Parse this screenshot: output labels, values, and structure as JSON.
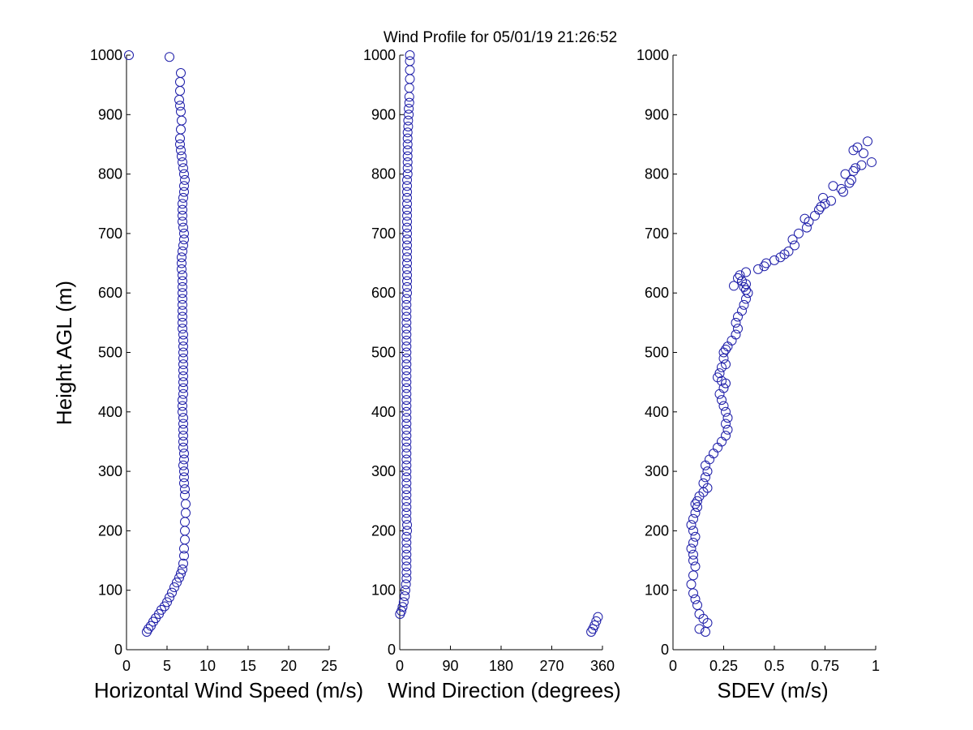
{
  "figure": {
    "title": "Wind Profile for  05/01/19 21:26:52",
    "marker_color": "#1c1ca8",
    "background_color": "#ffffff"
  },
  "chart_data": [
    {
      "type": "scatter",
      "id": "speed",
      "title": "",
      "xlabel": "Horizontal Wind Speed (m/s)",
      "ylabel": "Height AGL (m)",
      "xlim": [
        0,
        25
      ],
      "ylim": [
        0,
        1000
      ],
      "xticks": [
        0,
        5,
        10,
        15,
        20,
        25
      ],
      "xtick_labels": [
        "0",
        "5",
        "10",
        "15",
        "20",
        "25"
      ],
      "yticks": [
        0,
        100,
        200,
        300,
        400,
        500,
        600,
        700,
        800,
        900,
        1000
      ],
      "ytick_labels": [
        "0",
        "100",
        "200",
        "300",
        "400",
        "500",
        "600",
        "700",
        "800",
        "900",
        "1000"
      ],
      "series": [
        {
          "name": "Horizontal Wind Speed",
          "x": [
            2.5,
            2.7,
            3.0,
            3.3,
            3.6,
            4.0,
            4.3,
            4.7,
            5.0,
            5.3,
            5.6,
            5.9,
            6.2,
            6.5,
            6.7,
            6.9,
            7.0,
            7.1,
            7.1,
            7.2,
            7.2,
            7.2,
            7.3,
            7.3,
            7.2,
            7.2,
            7.1,
            7.1,
            7.1,
            7.0,
            7.1,
            7.1,
            7.0,
            7.0,
            7.0,
            7.0,
            7.0,
            7.0,
            6.9,
            6.9,
            6.9,
            7.0,
            7.0,
            7.0,
            7.0,
            7.0,
            7.0,
            7.0,
            7.0,
            7.0,
            7.0,
            7.0,
            6.9,
            6.9,
            6.9,
            6.9,
            6.9,
            6.9,
            6.9,
            6.9,
            6.9,
            6.9,
            6.8,
            6.8,
            6.8,
            6.9,
            7.0,
            7.1,
            7.1,
            7.0,
            6.9,
            6.9,
            6.9,
            6.9,
            7.0,
            7.1,
            7.1,
            7.2,
            7.1,
            7.0,
            6.9,
            6.8,
            6.7,
            6.6,
            6.6,
            6.7,
            6.8,
            6.7,
            6.6,
            6.5,
            6.6,
            6.6,
            6.7,
            5.3,
            0.3
          ],
          "y": [
            30,
            35,
            40,
            47,
            53,
            60,
            67,
            73,
            80,
            88,
            96,
            105,
            113,
            121,
            128,
            135,
            145,
            158,
            170,
            185,
            200,
            215,
            230,
            245,
            260,
            270,
            280,
            290,
            300,
            310,
            320,
            330,
            340,
            350,
            360,
            370,
            380,
            390,
            400,
            410,
            420,
            430,
            440,
            450,
            460,
            470,
            480,
            490,
            500,
            510,
            520,
            530,
            540,
            550,
            560,
            570,
            580,
            590,
            600,
            610,
            620,
            630,
            640,
            650,
            660,
            670,
            680,
            690,
            700,
            710,
            720,
            730,
            740,
            750,
            760,
            770,
            780,
            790,
            800,
            810,
            820,
            830,
            840,
            850,
            860,
            875,
            890,
            905,
            915,
            925,
            940,
            955,
            970,
            997,
            1000
          ]
        }
      ]
    },
    {
      "type": "scatter",
      "id": "direction",
      "title": "",
      "xlabel": "Wind Direction (degrees)",
      "ylabel": "",
      "xlim": [
        0,
        360
      ],
      "ylim": [
        0,
        1000
      ],
      "xticks": [
        0,
        90,
        180,
        270,
        360
      ],
      "xtick_labels": [
        "0",
        "90",
        "180",
        "270",
        "360"
      ],
      "yticks": [
        0,
        100,
        200,
        300,
        400,
        500,
        600,
        700,
        800,
        900,
        1000
      ],
      "ytick_labels": [
        "0",
        "100",
        "200",
        "300",
        "400",
        "500",
        "600",
        "700",
        "800",
        "900",
        "1000"
      ],
      "series": [
        {
          "name": "Wind Direction",
          "x": [
            340,
            343,
            346,
            349,
            352,
            0.5,
            3,
            5,
            7,
            9,
            10,
            11,
            12,
            12,
            12,
            12,
            12,
            12,
            12,
            12,
            13,
            13,
            12,
            12,
            12,
            12,
            12,
            12,
            12,
            12,
            12,
            12,
            12,
            12,
            12,
            12,
            12,
            12,
            12,
            12,
            12,
            12,
            12,
            12,
            12,
            12,
            12,
            12,
            12,
            12,
            12,
            12,
            12,
            12,
            12,
            12,
            12,
            12,
            12,
            12,
            13,
            13,
            13,
            13,
            13,
            13,
            13,
            13,
            13,
            13,
            13,
            13,
            13,
            13,
            13,
            13,
            13,
            13,
            13,
            13,
            14,
            14,
            14,
            14,
            14,
            14,
            14,
            14,
            15,
            15,
            16,
            16,
            17,
            17,
            17,
            18,
            18,
            18,
            18
          ],
          "y": [
            30,
            35,
            41,
            48,
            55,
            60,
            65,
            72,
            80,
            90,
            100,
            110,
            120,
            130,
            140,
            150,
            160,
            170,
            180,
            190,
            200,
            210,
            220,
            230,
            240,
            250,
            260,
            270,
            280,
            290,
            300,
            310,
            320,
            330,
            340,
            350,
            360,
            370,
            380,
            390,
            400,
            410,
            420,
            430,
            440,
            450,
            460,
            470,
            480,
            490,
            500,
            510,
            520,
            530,
            540,
            550,
            560,
            570,
            580,
            590,
            600,
            610,
            620,
            630,
            640,
            650,
            660,
            670,
            680,
            690,
            700,
            710,
            720,
            730,
            740,
            750,
            760,
            770,
            780,
            790,
            800,
            810,
            820,
            830,
            840,
            850,
            860,
            870,
            880,
            890,
            900,
            910,
            920,
            930,
            945,
            960,
            975,
            990,
            1000
          ]
        }
      ]
    },
    {
      "type": "scatter",
      "id": "sdev",
      "title": "",
      "xlabel": "SDEV  (m/s)",
      "ylabel": "",
      "xlim": [
        0,
        1
      ],
      "ylim": [
        0,
        1000
      ],
      "xticks": [
        0,
        0.25,
        0.5,
        0.75,
        1
      ],
      "xtick_labels": [
        "0",
        "0.25",
        "0.5",
        "0.75",
        "1"
      ],
      "yticks": [
        0,
        100,
        200,
        300,
        400,
        500,
        600,
        700,
        800,
        900,
        1000
      ],
      "ytick_labels": [
        "0",
        "100",
        "200",
        "300",
        "400",
        "500",
        "600",
        "700",
        "800",
        "900",
        "1000"
      ],
      "series": [
        {
          "name": "SDEV",
          "x": [
            0.16,
            0.13,
            0.17,
            0.15,
            0.13,
            0.12,
            0.11,
            0.1,
            0.09,
            0.1,
            0.11,
            0.1,
            0.1,
            0.09,
            0.1,
            0.11,
            0.1,
            0.09,
            0.1,
            0.11,
            0.12,
            0.11,
            0.12,
            0.13,
            0.15,
            0.17,
            0.15,
            0.16,
            0.17,
            0.16,
            0.18,
            0.2,
            0.22,
            0.24,
            0.26,
            0.27,
            0.26,
            0.27,
            0.26,
            0.25,
            0.24,
            0.23,
            0.25,
            0.26,
            0.24,
            0.22,
            0.23,
            0.24,
            0.26,
            0.25,
            0.25,
            0.26,
            0.27,
            0.29,
            0.31,
            0.32,
            0.31,
            0.32,
            0.34,
            0.35,
            0.36,
            0.37,
            0.36,
            0.35,
            0.36,
            0.34,
            0.32,
            0.3,
            0.33,
            0.36,
            0.42,
            0.45,
            0.46,
            0.5,
            0.53,
            0.55,
            0.57,
            0.6,
            0.59,
            0.62,
            0.66,
            0.67,
            0.65,
            0.7,
            0.72,
            0.73,
            0.75,
            0.78,
            0.74,
            0.84,
            0.83,
            0.79,
            0.87,
            0.88,
            0.85,
            0.89,
            0.9,
            0.93,
            0.98,
            0.94,
            0.89,
            0.91,
            0.96
          ],
          "y": [
            30,
            35,
            45,
            52,
            60,
            75,
            85,
            95,
            110,
            125,
            140,
            150,
            160,
            170,
            180,
            190,
            200,
            210,
            220,
            230,
            240,
            245,
            250,
            258,
            265,
            272,
            280,
            290,
            300,
            310,
            320,
            330,
            340,
            350,
            360,
            370,
            380,
            390,
            400,
            410,
            420,
            430,
            440,
            448,
            452,
            458,
            465,
            475,
            480,
            490,
            500,
            505,
            510,
            520,
            530,
            540,
            550,
            560,
            570,
            580,
            590,
            600,
            605,
            610,
            615,
            620,
            625,
            612,
            630,
            635,
            640,
            645,
            650,
            655,
            660,
            665,
            670,
            680,
            690,
            700,
            710,
            720,
            725,
            730,
            740,
            745,
            750,
            755,
            760,
            770,
            775,
            780,
            785,
            790,
            800,
            805,
            810,
            815,
            820,
            835,
            840,
            845,
            855
          ]
        }
      ]
    }
  ]
}
